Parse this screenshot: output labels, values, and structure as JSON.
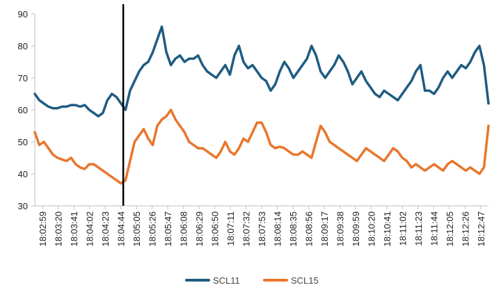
{
  "colors": {
    "scl11": "#1f5c82",
    "scl15": "#e8762c",
    "marker_line": "#000000",
    "axis": "#bfbfbf",
    "text": "#222222"
  },
  "chart_data": {
    "type": "line",
    "title": "",
    "xlabel": "",
    "ylabel": "",
    "ylim": [
      30,
      90
    ],
    "yticks": [
      30,
      40,
      50,
      60,
      70,
      80,
      90
    ],
    "grid": false,
    "legend_position": "bottom",
    "x_range": [
      0,
      100
    ],
    "categories": [
      "18:02:59",
      "18:03:20",
      "18:03:41",
      "18:04:02",
      "18:04:23",
      "18:04:44",
      "18:05:05",
      "18:05:26",
      "18:05:47",
      "18:06:08",
      "18:06:29",
      "18:06:50",
      "18:07:11",
      "18:07:32",
      "18:07:53",
      "18:08:14",
      "18:08:35",
      "18:08:56",
      "18:09:17",
      "18:09:38",
      "18:09:59",
      "18:10:20",
      "18:10:41",
      "18:11:02",
      "18:11:23",
      "18:11:44",
      "18:12:05",
      "18:12:26",
      "18:12:47"
    ],
    "vertical_marker_x": 19.5,
    "series": [
      {
        "name": "SCL11",
        "x": [
          0,
          1,
          2,
          3,
          4,
          5,
          6,
          7,
          8,
          9,
          10,
          11,
          12,
          13,
          14,
          15,
          16,
          17,
          18,
          19,
          20,
          21,
          22,
          23,
          24,
          25,
          26,
          27,
          28,
          29,
          30,
          31,
          32,
          33,
          34,
          35,
          36,
          37,
          38,
          39,
          40,
          41,
          42,
          43,
          44,
          45,
          46,
          47,
          48,
          49,
          50,
          51,
          52,
          53,
          54,
          55,
          56,
          57,
          58,
          59,
          60,
          61,
          62,
          63,
          64,
          65,
          66,
          67,
          68,
          69,
          70,
          71,
          72,
          73,
          74,
          75,
          76,
          77,
          78,
          79,
          80,
          81,
          82,
          83,
          84,
          85,
          86,
          87,
          88,
          89,
          90,
          91,
          92,
          93,
          94,
          95,
          96,
          97,
          98,
          99,
          100
        ],
        "values": [
          65,
          63,
          62,
          61,
          60.5,
          60.5,
          61,
          61,
          61.5,
          61.5,
          61,
          61.5,
          60,
          59,
          58,
          59,
          63,
          65,
          64,
          62,
          60,
          66,
          69,
          72,
          74,
          75,
          78,
          82,
          86,
          78,
          74,
          76,
          77,
          75,
          76,
          76,
          77,
          74,
          72,
          71,
          70,
          72,
          74,
          71,
          77,
          80,
          75,
          73,
          74,
          72,
          70,
          69,
          66,
          68,
          72,
          75,
          73,
          70,
          72,
          74,
          76,
          80,
          77,
          72,
          70,
          72,
          74,
          77,
          75,
          72,
          68,
          70,
          72,
          69,
          67,
          65,
          64,
          66,
          65,
          64,
          63,
          65,
          67,
          69,
          72,
          74,
          66,
          66,
          65,
          67,
          70,
          72,
          70,
          72,
          74,
          73,
          75,
          78,
          80,
          74,
          62
        ],
        "color": "#1f5c82"
      },
      {
        "name": "SCL15",
        "x": [
          0,
          1,
          2,
          3,
          4,
          5,
          6,
          7,
          8,
          9,
          10,
          11,
          12,
          13,
          14,
          15,
          16,
          17,
          18,
          19,
          20,
          21,
          22,
          23,
          24,
          25,
          26,
          27,
          28,
          29,
          30,
          31,
          32,
          33,
          34,
          35,
          36,
          37,
          38,
          39,
          40,
          41,
          42,
          43,
          44,
          45,
          46,
          47,
          48,
          49,
          50,
          51,
          52,
          53,
          54,
          55,
          56,
          57,
          58,
          59,
          60,
          61,
          62,
          63,
          64,
          65,
          66,
          67,
          68,
          69,
          70,
          71,
          72,
          73,
          74,
          75,
          76,
          77,
          78,
          79,
          80,
          81,
          82,
          83,
          84,
          85,
          86,
          87,
          88,
          89,
          90,
          91,
          92,
          93,
          94,
          95,
          96,
          97,
          98,
          99,
          100
        ],
        "values": [
          53,
          49,
          50,
          48,
          46,
          45,
          44.5,
          44,
          45,
          43,
          42,
          41.5,
          43,
          43,
          42,
          41,
          40,
          39,
          38,
          37,
          38,
          44,
          50,
          52,
          54,
          51,
          49,
          55,
          57,
          58,
          60,
          57,
          55,
          53,
          50,
          49,
          48,
          48,
          47,
          46,
          45,
          47,
          50,
          47,
          46,
          48,
          51,
          50,
          53,
          56,
          56,
          53,
          49,
          48,
          48.5,
          48,
          47,
          46,
          46,
          47,
          46,
          45,
          50,
          55,
          53,
          50,
          49,
          48,
          47,
          46,
          45,
          44,
          46,
          48,
          47,
          46,
          45,
          44,
          46,
          48,
          47,
          45,
          44,
          42,
          43,
          42,
          41,
          42,
          43,
          42,
          41,
          43,
          44,
          43,
          42,
          41,
          42,
          41,
          40,
          42,
          55
        ],
        "color": "#e8762c"
      }
    ]
  }
}
